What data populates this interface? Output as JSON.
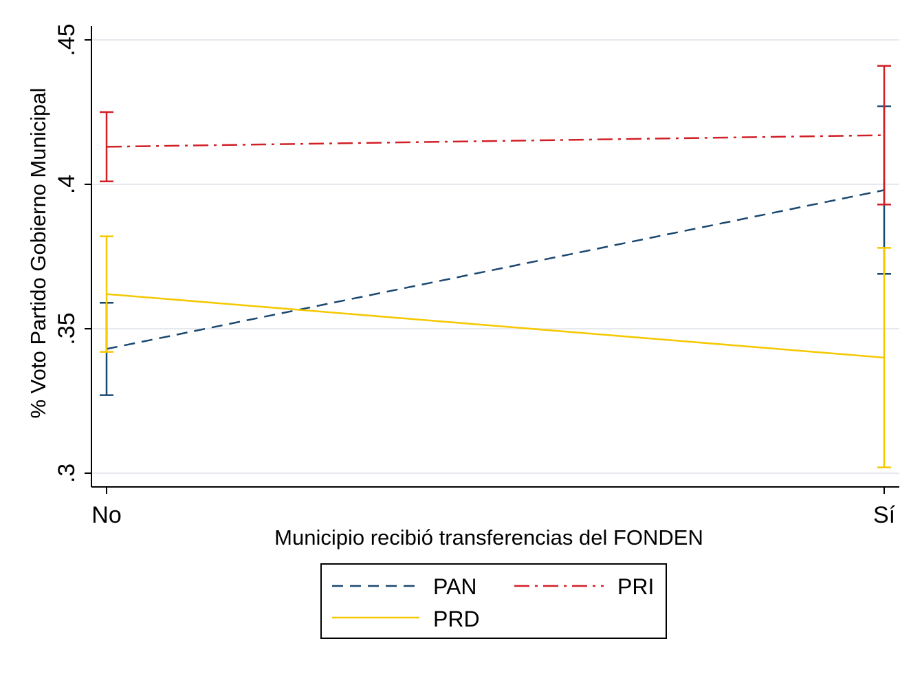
{
  "chart_data": {
    "type": "line",
    "title": "",
    "xlabel": "Municipio recibió transferencias del FONDEN",
    "ylabel": "% Voto Partido Gobierno Municipal",
    "categories": [
      "No",
      "Sí"
    ],
    "ylim": [
      0.295,
      0.455
    ],
    "yticks": [
      {
        "value": 0.3,
        "label": ".3"
      },
      {
        "value": 0.35,
        "label": ".35"
      },
      {
        "value": 0.4,
        "label": ".4"
      },
      {
        "value": 0.45,
        "label": ".45"
      }
    ],
    "grid": true,
    "legend_position": "bottom",
    "series": [
      {
        "name": "PAN",
        "color": "#1a476f",
        "dash": "dashed",
        "values": [
          0.343,
          0.398
        ],
        "ci_low": [
          0.327,
          0.369
        ],
        "ci_high": [
          0.359,
          0.427
        ]
      },
      {
        "name": "PRI",
        "color": "#d11f26",
        "dash": "dashdot",
        "values": [
          0.413,
          0.417
        ],
        "ci_low": [
          0.401,
          0.393
        ],
        "ci_high": [
          0.425,
          0.441
        ]
      },
      {
        "name": "PRD",
        "color": "#f5c800",
        "dash": "solid",
        "values": [
          0.362,
          0.34
        ],
        "ci_low": [
          0.342,
          0.302
        ],
        "ci_high": [
          0.382,
          0.378
        ]
      }
    ]
  }
}
